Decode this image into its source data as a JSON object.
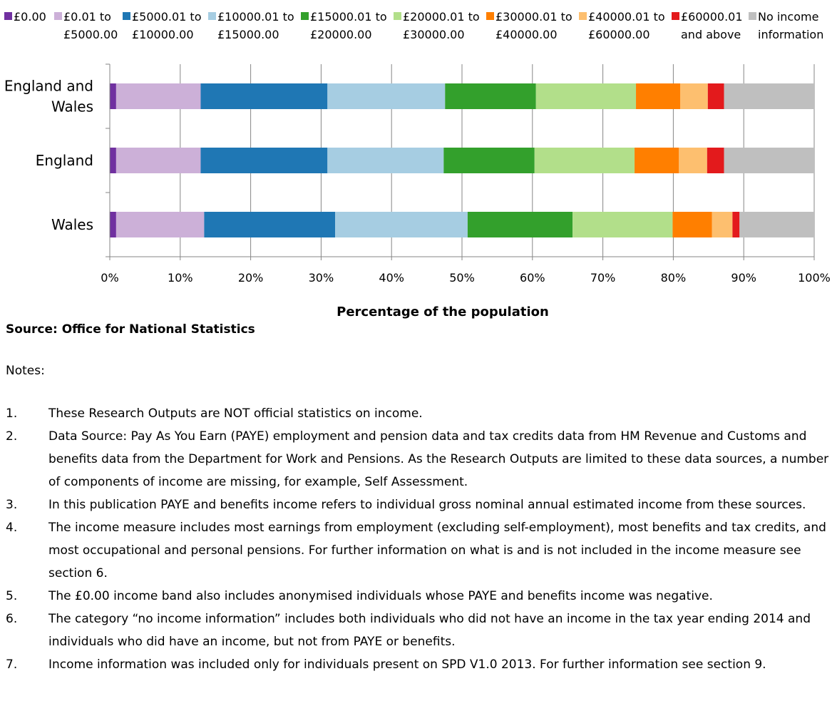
{
  "chart_data": {
    "type": "bar",
    "orientation": "horizontal",
    "stacked": true,
    "xlabel": "Percentage of the population",
    "ylabel": "",
    "xlim": [
      0,
      100
    ],
    "x_ticks": [
      "0%",
      "10%",
      "20%",
      "30%",
      "40%",
      "50%",
      "60%",
      "70%",
      "80%",
      "90%",
      "100%"
    ],
    "categories": [
      [
        "England and",
        "Wales"
      ],
      [
        "England"
      ],
      [
        "Wales"
      ]
    ],
    "legend_position": "top",
    "grid": true,
    "series": [
      {
        "name": [
          "£0.00",
          ""
        ],
        "color": "#7030a0",
        "values": [
          0.9,
          0.9,
          0.9
        ]
      },
      {
        "name": [
          "£0.01 to",
          "£5000.00"
        ],
        "color": "#ccb0d8",
        "values": [
          12.0,
          12.0,
          12.5
        ]
      },
      {
        "name": [
          "£5000.01 to",
          "£10000.00"
        ],
        "color": "#1f77b4",
        "values": [
          18.0,
          18.0,
          18.6
        ]
      },
      {
        "name": [
          "£10000.01 to",
          "£15000.00"
        ],
        "color": "#a6cde2",
        "values": [
          16.7,
          16.5,
          18.8
        ]
      },
      {
        "name": [
          "£15000.01 to",
          "£20000.00"
        ],
        "color": "#33a02c",
        "values": [
          12.9,
          12.9,
          14.9
        ]
      },
      {
        "name": [
          "£20000.01 to",
          "£30000.00"
        ],
        "color": "#b2df8a",
        "values": [
          14.2,
          14.2,
          14.2
        ]
      },
      {
        "name": [
          "£30000.01 to",
          "£40000.00"
        ],
        "color": "#ff7f00",
        "values": [
          6.3,
          6.3,
          5.6
        ]
      },
      {
        "name": [
          "£40000.01 to",
          "£60000.00"
        ],
        "color": "#fdbf6f",
        "values": [
          3.9,
          4.0,
          2.9
        ]
      },
      {
        "name": [
          "£60000.01",
          "and above"
        ],
        "color": "#e31a1c",
        "values": [
          2.3,
          2.4,
          1.0
        ]
      },
      {
        "name": [
          "No income",
          "information"
        ],
        "color": "#bfbfbf",
        "values": [
          12.8,
          12.8,
          10.6
        ]
      }
    ]
  },
  "source": "Source: Office for National Statistics",
  "notes_heading": "Notes:",
  "notes": [
    {
      "num": "1.",
      "text": "These Research Outputs are NOT official statistics on income."
    },
    {
      "num": "2.",
      "text": "Data Source: Pay As You Earn (PAYE) employment and pension data and tax credits data from HM Revenue and Customs and benefits data from the Department for Work and Pensions. As the Research Outputs are limited to these data sources, a number of components of income are missing, for example, Self Assessment."
    },
    {
      "num": "3.",
      "text": "In this publication PAYE and benefits income refers to individual gross nominal annual estimated income from these sources."
    },
    {
      "num": "4.",
      "text": "The income measure includes most earnings from employment (excluding self-employment), most benefits and tax credits, and most occupational and personal pensions. For further information on what is and is not included in the income measure see section 6."
    },
    {
      "num": "5.",
      "text": "The £0.00 income band also includes anonymised individuals whose PAYE and benefits income was negative."
    },
    {
      "num": "6.",
      "text": "The category “no income information” includes both individuals who did not have an income in the tax year ending 2014 and individuals who did have an income, but not from PAYE or benefits."
    },
    {
      "num": "7.",
      "text": "Income information was included only for individuals present on SPD V1.0 2013. For further information see section 9."
    }
  ]
}
